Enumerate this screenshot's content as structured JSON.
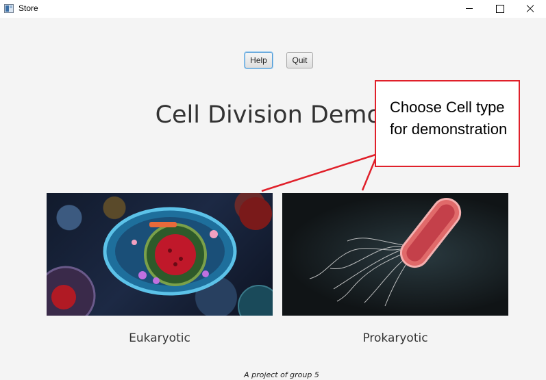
{
  "window": {
    "title": "Store",
    "icon": "app-window-icon"
  },
  "toolbar": {
    "help_label": "Help",
    "quit_label": "Quit"
  },
  "main": {
    "title": "Cell Division Demonstr"
  },
  "cells": [
    {
      "label": "Eukaryotic",
      "image": "eukaryotic-cell-image"
    },
    {
      "label": "Prokaryotic",
      "image": "prokaryotic-bacteria-image"
    }
  ],
  "callout": {
    "text": "Choose Cell type for demonstration",
    "color": "#e0202a"
  },
  "footer": {
    "text": "A project of group 5"
  }
}
